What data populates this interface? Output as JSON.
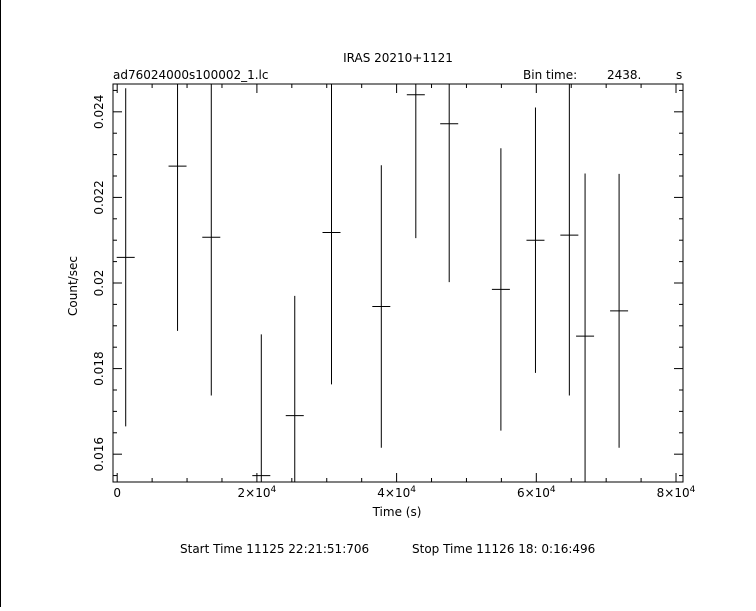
{
  "chart_data": {
    "type": "scatter",
    "title": "IRAS 20210+1121",
    "file_label": "ad76024000s100002_1.lc",
    "bin_time_label": "Bin time:",
    "bin_time_value": "2438.",
    "bin_time_unit": "s",
    "xlabel": "Time (s)",
    "ylabel": "Count/sec",
    "xlim": [
      -600,
      81000
    ],
    "ylim": [
      0.01535,
      0.02465
    ],
    "x_ticks": [
      {
        "value": 0,
        "base": "0",
        "exp": ""
      },
      {
        "value": 20000,
        "base": "2×10",
        "exp": "4"
      },
      {
        "value": 40000,
        "base": "4×10",
        "exp": "4"
      },
      {
        "value": 60000,
        "base": "6×10",
        "exp": "4"
      },
      {
        "value": 80000,
        "base": "8×10",
        "exp": "4"
      }
    ],
    "y_ticks": [
      {
        "value": 0.016,
        "label": "0.016"
      },
      {
        "value": 0.018,
        "label": "0.018"
      },
      {
        "value": 0.02,
        "label": "0.02"
      },
      {
        "value": 0.022,
        "label": "0.022"
      },
      {
        "value": 0.024,
        "label": "0.024"
      }
    ],
    "x_minor_step": 5000,
    "y_minor_step": 0.0005,
    "grid": false,
    "series": [
      {
        "points": [
          {
            "x": 1219,
            "y": 0.0206,
            "yerr": 0.00395
          },
          {
            "x": 8640,
            "y": 0.02273,
            "yerr": 0.00385
          },
          {
            "x": 13470,
            "y": 0.02107,
            "yerr": 0.0037
          },
          {
            "x": 20630,
            "y": 0.0155,
            "yerr": 0.0033
          },
          {
            "x": 25420,
            "y": 0.0169,
            "yerr": 0.0028
          },
          {
            "x": 30680,
            "y": 0.02118,
            "yerr": 0.00355
          },
          {
            "x": 37810,
            "y": 0.01945,
            "yerr": 0.0033
          },
          {
            "x": 42750,
            "y": 0.0244,
            "yerr": 0.00335
          },
          {
            "x": 47530,
            "y": 0.02372,
            "yerr": 0.0037
          },
          {
            "x": 54930,
            "y": 0.01985,
            "yerr": 0.0033
          },
          {
            "x": 59880,
            "y": 0.021,
            "yerr": 0.0031
          },
          {
            "x": 64730,
            "y": 0.02112,
            "yerr": 0.00375
          },
          {
            "x": 66980,
            "y": 0.01876,
            "yerr": 0.0038
          },
          {
            "x": 71850,
            "y": 0.01935,
            "yerr": 0.0032
          }
        ]
      }
    ]
  },
  "footer": {
    "start_time": "Start Time 11125 22:21:51:706",
    "stop_time": "Stop Time 11126 18: 0:16:496"
  }
}
